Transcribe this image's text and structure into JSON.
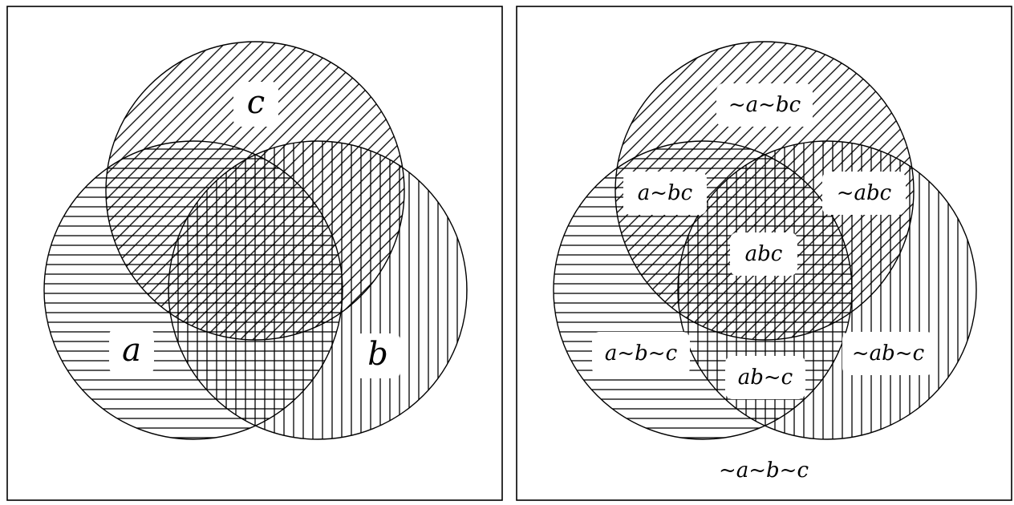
{
  "panels": [
    {
      "id": "left",
      "sets": [
        {
          "label": "a",
          "hatch": "horizontal"
        },
        {
          "label": "b",
          "hatch": "vertical"
        },
        {
          "label": "c",
          "hatch": "diagonal"
        }
      ]
    },
    {
      "id": "right",
      "regions": [
        {
          "label": "~a~bc"
        },
        {
          "label": "a~bc"
        },
        {
          "label": "~abc"
        },
        {
          "label": "abc"
        },
        {
          "label": "a~b~c"
        },
        {
          "label": "ab~c"
        },
        {
          "label": "~ab~c"
        },
        {
          "label": "~a~b~c"
        }
      ]
    }
  ],
  "colors": {
    "line": "#000000",
    "background": "#ffffff"
  }
}
